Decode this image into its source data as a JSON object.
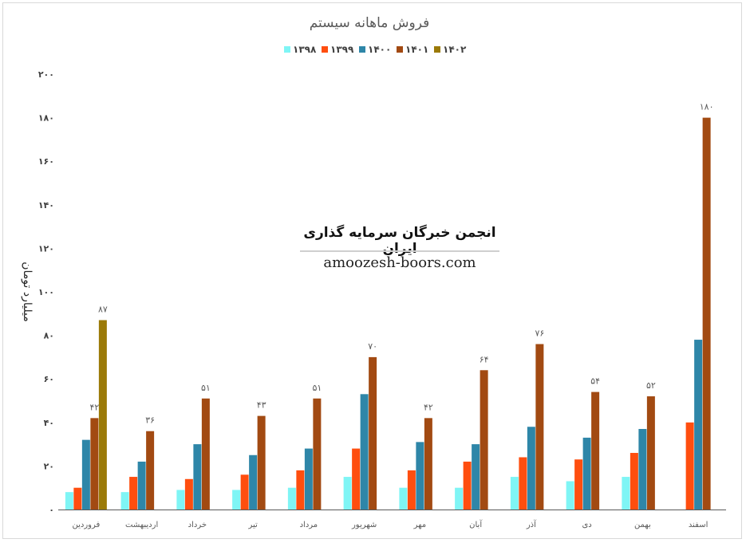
{
  "chart_data": {
    "type": "bar",
    "title": "فروش ماهانه سیستم",
    "ylabel": "میلیارد تومان",
    "xlabel": "",
    "ylim": [
      0,
      200
    ],
    "yticks": [
      0,
      20,
      40,
      60,
      80,
      100,
      120,
      140,
      160,
      180,
      200
    ],
    "ytick_labels": [
      "۰",
      "۲۰",
      "۴۰",
      "۶۰",
      "۸۰",
      "۱۰۰",
      "۱۲۰",
      "۱۴۰",
      "۱۶۰",
      "۱۸۰",
      "۲۰۰"
    ],
    "legend_position": "top",
    "grid": false,
    "categories": [
      "فروردین",
      "اردیبهشت",
      "خرداد",
      "تیر",
      "مرداد",
      "شهریور",
      "مهر",
      "آبان",
      "آذر",
      "دی",
      "بهمن",
      "اسفند"
    ],
    "series": [
      {
        "name": "۱۳۹۸",
        "color": "#7ff5f5",
        "values": [
          8,
          8,
          9,
          9,
          10,
          15,
          10,
          10,
          15,
          13,
          15,
          null
        ]
      },
      {
        "name": "۱۳۹۹",
        "color": "#ff4e0f",
        "values": [
          10,
          15,
          14,
          16,
          18,
          28,
          18,
          22,
          24,
          23,
          26,
          40
        ]
      },
      {
        "name": "۱۴۰۰",
        "color": "#2e86a8",
        "values": [
          32,
          22,
          30,
          25,
          28,
          53,
          31,
          30,
          38,
          33,
          37,
          78
        ]
      },
      {
        "name": "۱۴۰۱",
        "color": "#a24a12",
        "values": [
          42,
          36,
          51,
          43,
          51,
          70,
          42,
          64,
          76,
          54,
          52,
          180
        ]
      },
      {
        "name": "۱۴۰۲",
        "color": "#9b7a08",
        "values": [
          87,
          null,
          null,
          null,
          null,
          null,
          null,
          null,
          null,
          null,
          null,
          null
        ]
      }
    ],
    "data_labels": {
      "1401": [
        "۴۲",
        "۳۶",
        "۵۱",
        "۴۳",
        "۵۱",
        "۷۰",
        "۴۲",
        "۶۴",
        "۷۶",
        "۵۴",
        "۵۲",
        "۱۸۰"
      ],
      "1402": [
        "۸۷",
        "",
        "",
        "",
        "",
        "",
        "",
        "",
        "",
        "",
        "",
        ""
      ]
    }
  },
  "watermark": {
    "title": "انجمن خبرگان سرمایه گذاری ایران",
    "url": "amoozesh-boors.com"
  }
}
